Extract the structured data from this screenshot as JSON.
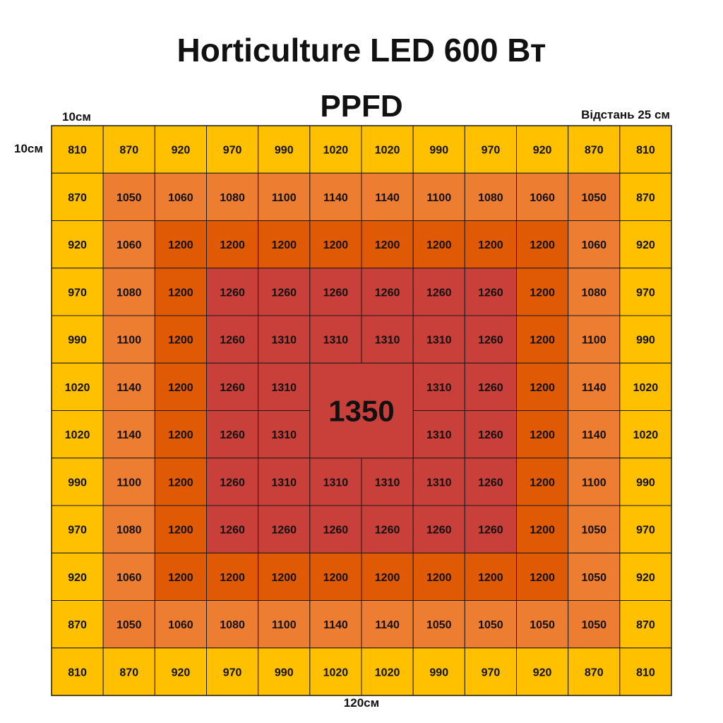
{
  "chart_data": {
    "type": "heatmap",
    "title": "Horticulture LED 600 Вт",
    "subtitle": "PPFD",
    "cell_x_label": "10см",
    "cell_y_label": "10см",
    "distance_label": "Відстань 25 см",
    "width_label": "120см",
    "rows": [
      [
        810,
        870,
        920,
        970,
        990,
        1020,
        1020,
        990,
        970,
        920,
        870,
        810
      ],
      [
        870,
        1050,
        1060,
        1080,
        1100,
        1140,
        1140,
        1100,
        1080,
        1060,
        1050,
        870
      ],
      [
        920,
        1060,
        1200,
        1200,
        1200,
        1200,
        1200,
        1200,
        1200,
        1200,
        1060,
        920
      ],
      [
        970,
        1080,
        1200,
        1260,
        1260,
        1260,
        1260,
        1260,
        1260,
        1200,
        1080,
        970
      ],
      [
        990,
        1100,
        1200,
        1260,
        1310,
        1310,
        1310,
        1310,
        1260,
        1200,
        1100,
        990
      ],
      [
        1020,
        1140,
        1200,
        1260,
        1310,
        null,
        null,
        1310,
        1260,
        1200,
        1140,
        1020
      ],
      [
        1020,
        1140,
        1200,
        1260,
        1310,
        null,
        null,
        1310,
        1260,
        1200,
        1140,
        1020
      ],
      [
        990,
        1100,
        1200,
        1260,
        1310,
        1310,
        1310,
        1310,
        1260,
        1200,
        1100,
        990
      ],
      [
        970,
        1080,
        1200,
        1260,
        1260,
        1260,
        1260,
        1260,
        1260,
        1200,
        1050,
        970
      ],
      [
        920,
        1060,
        1200,
        1200,
        1200,
        1200,
        1200,
        1200,
        1200,
        1200,
        1050,
        920
      ],
      [
        870,
        1050,
        1060,
        1080,
        1100,
        1140,
        1140,
        1050,
        1050,
        1050,
        1050,
        870
      ],
      [
        810,
        870,
        920,
        970,
        990,
        1020,
        1020,
        990,
        970,
        920,
        870,
        810
      ]
    ],
    "center_value": 1350,
    "color_scale": [
      {
        "max": 1020,
        "color": "#FFC000"
      },
      {
        "max": 1199,
        "color": "#ED7D31"
      },
      {
        "max": 1259,
        "color": "#E05A05"
      },
      {
        "max": 9999,
        "color": "#C9403A"
      }
    ],
    "grid_line_color": "#1a1a1a"
  }
}
